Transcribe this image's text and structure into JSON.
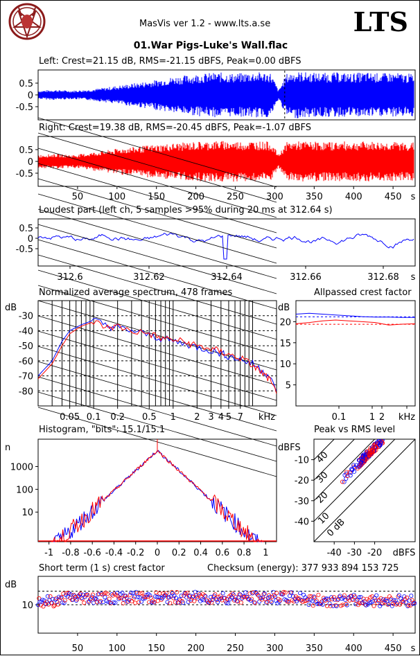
{
  "header": {
    "app_title": "MasVis ver 1.2 - www.lts.a.se",
    "file_title": "01.War Pigs-Luke's Wall.flac",
    "brand": "LTS"
  },
  "colors": {
    "left": "#0000ff",
    "right": "#ff0000"
  },
  "chart_data": [
    {
      "id": "left_waveform",
      "type": "line",
      "title": "Left: Crest=21.15 dB, RMS=-21.15 dBFS, Peak=0.00 dBFS",
      "yticks": [
        "0.5",
        "0",
        "-0.5"
      ],
      "ylim": [
        -1,
        1
      ],
      "xlim": [
        0,
        478
      ],
      "marker_s": 312.64,
      "envelope": [
        0.18,
        0.2,
        0.22,
        0.2,
        0.18,
        0.2,
        0.22,
        0.25,
        0.3,
        0.35,
        0.4,
        0.45,
        0.5,
        0.55,
        0.6,
        0.66,
        0.72,
        0.78,
        0.82,
        0.86,
        0.9,
        0.92,
        0.95,
        0.95,
        0.92,
        0.92,
        0.95,
        0.98,
        0.96,
        0.95,
        0.2,
        0.9,
        1.0,
        0.98,
        0.96,
        0.95,
        0.94,
        0.96,
        0.95,
        0.92,
        0.95,
        0.96,
        0.94,
        0.92,
        0.95,
        0.93,
        0.9,
        0.92
      ]
    },
    {
      "id": "right_waveform",
      "type": "line",
      "title": "Right: Crest=19.38 dB, RMS=-20.45 dBFS, Peak=-1.07 dBFS",
      "yticks": [
        "0.5",
        "0",
        "-0.5"
      ],
      "ylim": [
        -1,
        1
      ],
      "xlim": [
        0,
        478
      ],
      "xticks": [
        "50",
        "100",
        "150",
        "200",
        "250",
        "300",
        "350",
        "400",
        "450",
        "s"
      ],
      "envelope": [
        0.28,
        0.3,
        0.32,
        0.3,
        0.28,
        0.3,
        0.35,
        0.4,
        0.45,
        0.5,
        0.55,
        0.6,
        0.62,
        0.66,
        0.7,
        0.72,
        0.75,
        0.78,
        0.8,
        0.82,
        0.85,
        0.85,
        0.88,
        0.88,
        0.86,
        0.86,
        0.85,
        0.88,
        0.85,
        0.84,
        0.3,
        0.82,
        0.85,
        0.86,
        0.84,
        0.85,
        0.82,
        0.84,
        0.85,
        0.83,
        0.84,
        0.85,
        0.84,
        0.82,
        0.84,
        0.82,
        0.8,
        0.82
      ]
    },
    {
      "id": "loudest_part",
      "type": "line",
      "title": "Loudest part (left  ch, 5 samples >95% during 20 ms at 312.64 s)",
      "yticks": [
        "0.5",
        "0",
        "-0.5"
      ],
      "ylim": [
        -1,
        1
      ],
      "xticks": [
        "312.6",
        "312.62",
        "312.64",
        "312.66",
        "312.68",
        "s"
      ]
    },
    {
      "id": "spectrum",
      "type": "line",
      "title": "Normalized average spectrum, 478 frames",
      "ylabel": "dB",
      "yticks": [
        "-30",
        "-40",
        "-50",
        "-60",
        "-70",
        "-80"
      ],
      "xticks": [
        "0.05",
        "0.1",
        "0.2",
        "0.5",
        "1",
        "2",
        "3",
        "4",
        "5",
        "7",
        "kHz"
      ],
      "xlim": [
        0.02,
        20
      ],
      "ylim": [
        -90,
        -20
      ],
      "series": [
        {
          "color": "blue",
          "x": [
            0.02,
            0.03,
            0.04,
            0.05,
            0.07,
            0.1,
            0.15,
            0.2,
            0.3,
            0.5,
            0.7,
            1,
            1.5,
            2,
            3,
            4,
            5,
            7,
            10,
            13,
            16,
            20
          ],
          "y": [
            -70,
            -60,
            -47,
            -40,
            -36,
            -33,
            -37,
            -38,
            -40,
            -43,
            -45,
            -47,
            -49,
            -51,
            -53,
            -55,
            -57,
            -59,
            -62,
            -66,
            -70,
            -80
          ]
        },
        {
          "color": "red",
          "x": [
            0.02,
            0.03,
            0.04,
            0.05,
            0.07,
            0.1,
            0.15,
            0.2,
            0.3,
            0.5,
            0.7,
            1,
            1.5,
            2,
            3,
            4,
            5,
            7,
            10,
            13,
            16,
            20
          ],
          "y": [
            -72,
            -62,
            -50,
            -42,
            -37,
            -34,
            -38,
            -37,
            -40,
            -42,
            -45,
            -46,
            -48,
            -50,
            -52,
            -54,
            -56,
            -58,
            -63,
            -68,
            -72,
            -82
          ]
        }
      ]
    },
    {
      "id": "allpassed_crest",
      "type": "line",
      "title": "Allpassed crest factor",
      "ylabel": "dB",
      "yticks": [
        "20",
        "15",
        "10",
        "5"
      ],
      "xticks": [
        "0.1",
        "1",
        "2",
        "kHz"
      ],
      "ylim": [
        0,
        25
      ],
      "series": [
        {
          "color": "blue",
          "level": [
            21.8,
            22.0,
            21.8,
            21.6,
            21.4,
            21.2,
            21.1,
            21.1,
            21.0,
            21.0
          ]
        },
        {
          "color": "red",
          "level": [
            19.5,
            19.8,
            20.2,
            20.4,
            20.2,
            20.0,
            19.8,
            19.2,
            19.4,
            19.5
          ]
        }
      ],
      "ref_blue": 21.15,
      "ref_red": 19.38
    },
    {
      "id": "histogram",
      "type": "line",
      "title": "Histogram, \"bits\": 15.1/15.1",
      "ylabel": "n",
      "yticks": [
        "1000",
        "100",
        "10"
      ],
      "xticks": [
        "-1",
        "-0.8",
        "-0.6",
        "-0.4",
        "-0.2",
        "0",
        "0.2",
        "0.4",
        "0.6",
        "0.8",
        "1"
      ],
      "xlim": [
        -1.1,
        1.1
      ]
    },
    {
      "id": "peak_vs_rms",
      "type": "scatter",
      "title": "Peak vs RMS level",
      "ylabel": "dBFS",
      "yticks": [
        "-10",
        "-20",
        "-30",
        "-40"
      ],
      "xticks": [
        "-40",
        "-30",
        "-20",
        "dBFS"
      ],
      "diag_labels": [
        "40",
        "30",
        "20",
        "10",
        "0 dB"
      ]
    },
    {
      "id": "short_term_crest",
      "type": "scatter",
      "title": "Short term (1 s) crest factor",
      "checksum": "Checksum (energy):   377 933 894 153 725",
      "ylabel": "dB",
      "yticks": [
        "10"
      ],
      "xticks": [
        "50",
        "100",
        "150",
        "200",
        "250",
        "300",
        "350",
        "400",
        "450",
        "s"
      ],
      "xlim": [
        0,
        478
      ]
    }
  ]
}
